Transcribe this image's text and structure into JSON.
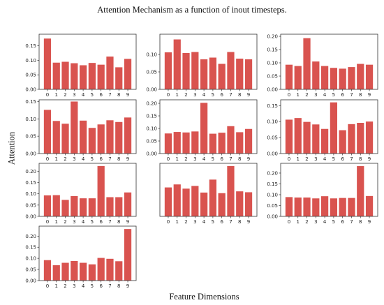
{
  "title": "Attention Mechanism as a function of inout timesteps.",
  "xlabel": "Feature Dimensions",
  "ylabel": "Attention",
  "colors": {
    "bar": "#d9534f",
    "axis": "#333333"
  },
  "chart_data": [
    {
      "type": "bar",
      "categories": [
        "0",
        "1",
        "2",
        "3",
        "4",
        "5",
        "6",
        "7",
        "8",
        "9"
      ],
      "values": [
        0.175,
        0.092,
        0.095,
        0.09,
        0.083,
        0.091,
        0.085,
        0.113,
        0.076,
        0.105
      ],
      "ylim": [
        0,
        0.19
      ],
      "yticks": [
        "0.00",
        "0.05",
        "0.10",
        "0.15"
      ]
    },
    {
      "type": "bar",
      "categories": [
        "0",
        "1",
        "2",
        "3",
        "4",
        "5",
        "6",
        "7",
        "8",
        "9"
      ],
      "values": [
        0.106,
        0.143,
        0.104,
        0.107,
        0.086,
        0.091,
        0.073,
        0.107,
        0.088,
        0.086
      ],
      "ylim": [
        0,
        0.158
      ],
      "yticks": [
        "0.00",
        "0.05",
        "0.10"
      ]
    },
    {
      "type": "bar",
      "categories": [
        "0",
        "1",
        "2",
        "3",
        "4",
        "5",
        "6",
        "7",
        "8",
        "9"
      ],
      "values": [
        0.093,
        0.088,
        0.193,
        0.105,
        0.088,
        0.081,
        0.078,
        0.084,
        0.096,
        0.093
      ],
      "ylim": [
        0,
        0.208
      ],
      "yticks": [
        "0.00",
        "0.05",
        "0.10",
        "0.15",
        "0.20"
      ]
    },
    {
      "type": "bar",
      "categories": [
        "0",
        "1",
        "2",
        "3",
        "4",
        "5",
        "6",
        "7",
        "8",
        "9"
      ],
      "values": [
        0.126,
        0.094,
        0.086,
        0.15,
        0.095,
        0.074,
        0.084,
        0.096,
        0.091,
        0.104
      ],
      "ylim": [
        0,
        0.155
      ],
      "yticks": [
        "0.00",
        "0.05",
        "0.10",
        "0.15"
      ]
    },
    {
      "type": "bar",
      "categories": [
        "0",
        "1",
        "2",
        "3",
        "4",
        "5",
        "6",
        "7",
        "8",
        "9"
      ],
      "values": [
        0.08,
        0.086,
        0.084,
        0.088,
        0.202,
        0.079,
        0.083,
        0.109,
        0.085,
        0.098
      ],
      "ylim": [
        0,
        0.214
      ],
      "yticks": [
        "0.00",
        "0.05",
        "0.10",
        "0.15",
        "0.20"
      ]
    },
    {
      "type": "bar",
      "categories": [
        "0",
        "1",
        "2",
        "3",
        "4",
        "5",
        "6",
        "7",
        "8",
        "9"
      ],
      "values": [
        0.106,
        0.111,
        0.099,
        0.091,
        0.077,
        0.16,
        0.073,
        0.092,
        0.096,
        0.1
      ],
      "ylim": [
        0,
        0.168
      ],
      "yticks": [
        "0.00",
        "0.05",
        "0.10",
        "0.15"
      ]
    },
    {
      "type": "bar",
      "categories": [
        "0",
        "1",
        "2",
        "3",
        "4",
        "5",
        "6",
        "7",
        "8",
        "9"
      ],
      "values": [
        0.093,
        0.094,
        0.073,
        0.09,
        0.08,
        0.08,
        0.223,
        0.085,
        0.085,
        0.106
      ],
      "ylim": [
        0,
        0.235
      ],
      "yticks": [
        "0.00",
        "0.05",
        "0.10",
        "0.15",
        "0.20"
      ]
    },
    {
      "type": "bar",
      "categories": [
        "0",
        "1",
        "2",
        "3",
        "4",
        "5",
        "6",
        "7",
        "8",
        "9"
      ],
      "values": [
        0.096,
        0.106,
        0.092,
        0.101,
        0.079,
        0.122,
        0.077,
        0.167,
        0.083,
        0.08
      ],
      "ylim": [
        0,
        0.176
      ],
      "yticks": []
    },
    {
      "type": "bar",
      "categories": [
        "0",
        "1",
        "2",
        "3",
        "4",
        "5",
        "6",
        "7",
        "8",
        "9"
      ],
      "values": [
        0.089,
        0.087,
        0.087,
        0.083,
        0.093,
        0.083,
        0.085,
        0.085,
        0.232,
        0.094
      ],
      "ylim": [
        0,
        0.245
      ],
      "yticks": [
        "0.00",
        "0.05",
        "0.10",
        "0.15",
        "0.20"
      ]
    },
    {
      "type": "bar",
      "categories": [
        "0",
        "1",
        "2",
        "3",
        "4",
        "5",
        "6",
        "7",
        "8",
        "9"
      ],
      "values": [
        0.092,
        0.069,
        0.08,
        0.088,
        0.08,
        0.073,
        0.102,
        0.098,
        0.087,
        0.232
      ],
      "ylim": [
        0,
        0.245
      ],
      "yticks": [
        "0.00",
        "0.05",
        "0.10",
        "0.15",
        "0.20"
      ]
    }
  ]
}
